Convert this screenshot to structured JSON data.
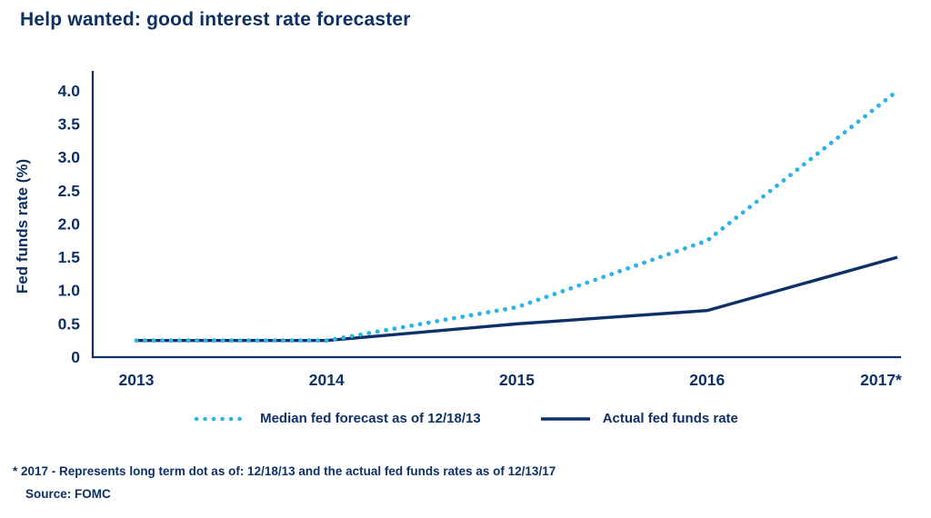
{
  "title": "Help wanted: good interest rate forecaster",
  "colors": {
    "navy": "#0d3166",
    "light_blue": "#2eb3e7"
  },
  "chart_data": {
    "type": "line",
    "title": "Help wanted: good interest rate forecaster",
    "xlabel": "",
    "ylabel": "Fed funds rate (%)",
    "x_ticks": [
      "2013",
      "2014",
      "2015",
      "2016",
      "2017*"
    ],
    "y_ticks": [
      0,
      0.5,
      1.0,
      1.5,
      2.0,
      2.5,
      3.0,
      3.5,
      4.0
    ],
    "ylim": [
      0,
      4.3
    ],
    "grid": false,
    "legend_position": "bottom",
    "categories": [
      2013,
      2014,
      2015,
      2016,
      2017
    ],
    "series": [
      {
        "name": "Median fed forecast as of 12/18/13",
        "style": "dotted",
        "color": "#2eb3e7",
        "values": [
          0.25,
          0.25,
          0.75,
          1.75,
          4.0
        ]
      },
      {
        "name": "Actual fed funds rate",
        "style": "solid",
        "color": "#0d3166",
        "values": [
          0.25,
          0.25,
          0.5,
          0.7,
          1.5
        ]
      }
    ]
  },
  "footnote": "* 2017 - Represents long term dot as of: 12/18/13 and the actual fed funds rates as of 12/13/17",
  "source": "Source: FOMC"
}
